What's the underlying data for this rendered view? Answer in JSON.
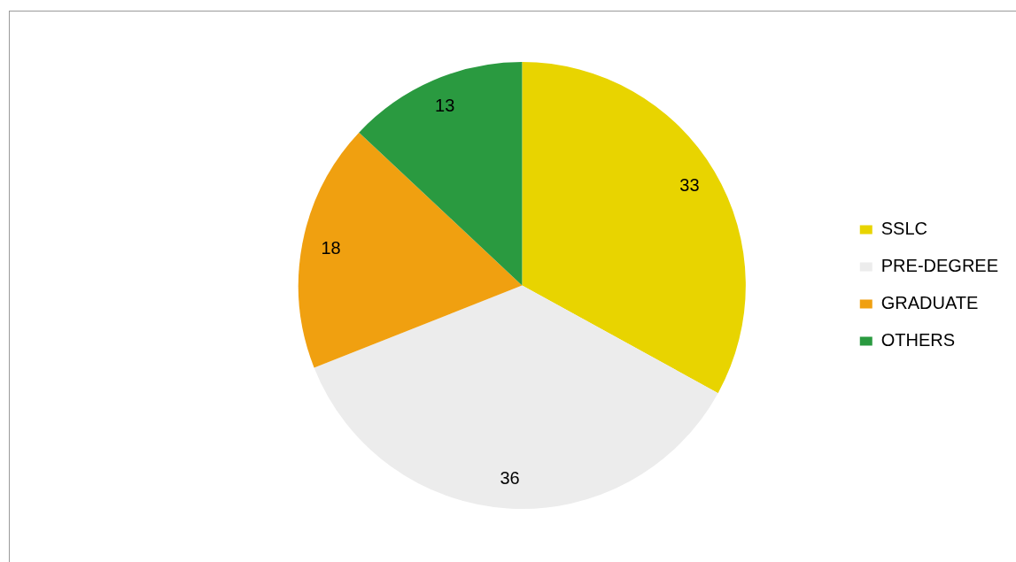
{
  "chart_data": {
    "type": "pie",
    "categories": [
      "SSLC",
      "PRE-DEGREE",
      "GRADUATE",
      "OTHERS"
    ],
    "values": [
      33,
      36,
      18,
      13
    ],
    "colors": [
      "#e8d400",
      "#ececec",
      "#f0a010",
      "#2a9a40"
    ],
    "data_labels": true,
    "legend": "right"
  }
}
